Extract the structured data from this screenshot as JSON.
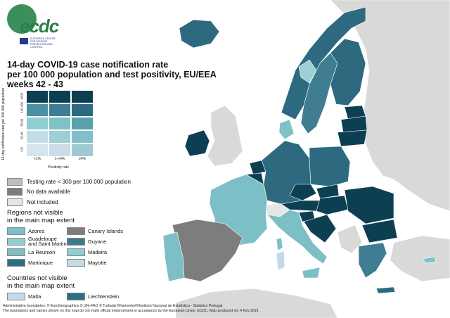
{
  "logo": {
    "text": "ecdc",
    "subtitle": "EUROPEAN CENTRE FOR DISEASE PREVENTION AND CONTROL"
  },
  "title": {
    "line1": "14-day COVID-19 case notification rate",
    "line2": "per 100 000 population and test positivity, EU/EEA",
    "line3": "weeks 42 - 43"
  },
  "matrix": {
    "y_label": "14-day notification rate per 100 000 population",
    "x_label": "Positivity rate",
    "rows": [
      "≥500",
      "100-499",
      "50-99",
      "20-49",
      "<20"
    ],
    "cols": [
      "<1%",
      "1-<4%",
      "≥4%"
    ],
    "colors": [
      [
        "#0d3f52",
        "#0d3f52",
        "#0d3f52"
      ],
      [
        "#4f8fa3",
        "#3f7d92",
        "#2d6a80"
      ],
      [
        "#8ecfd0",
        "#7ec2c6",
        "#5aa0ad"
      ],
      [
        "#c3dbe6",
        "#9cd0d4",
        "#82bfc9"
      ],
      [
        "#d6e4ee",
        "#c9dde9",
        "#9ec9d3"
      ]
    ]
  },
  "legend": {
    "testing_rate": {
      "label": "Testing rate < 300 per 100 000 population",
      "color": "#bdbdbd"
    },
    "no_data": {
      "label": "No data available",
      "color": "#7d7d7d"
    },
    "not_included": {
      "label": "Not included",
      "color": "#e6e6e6"
    }
  },
  "regions_heading": "Regions not visible\nin the main map extent",
  "regions": [
    {
      "name": "Azores",
      "color": "#7cbfc6"
    },
    {
      "name": "Canary Islands",
      "color": "#7d7d7d"
    },
    {
      "name": "Guadeloupe\nand Saint Martin",
      "color": "#8ecfd0"
    },
    {
      "name": "Guyane",
      "color": "#3a7a90"
    },
    {
      "name": "La Reunion",
      "color": "#7cbfc6"
    },
    {
      "name": "Madeira",
      "color": "#8ecfd0"
    },
    {
      "name": "Martinique",
      "color": "#2a6f84"
    },
    {
      "name": "Mayotte",
      "color": "#c3dbe6"
    }
  ],
  "countries_heading": "Countries not visible\nin the main map extent",
  "countries": [
    {
      "name": "Malta",
      "color": "#c3dbe6"
    },
    {
      "name": "Liechtenstein",
      "color": "#2a6f84"
    }
  ],
  "footer": {
    "line1": "Administrative boundaries: © EuroGeographics © UN–FAO © Turkstat ©Kartverket©Instituto Nacional de Estatística - Statistics Portugal.",
    "line2": "The boundaries and names shown on this map do not imply official endorsement or acceptance by the European Union. ECDC. Map produced on: 4 Nov 2021"
  },
  "map_colors": {
    "sea": "#ffffff",
    "non_eu": "#d9d9d9",
    "dark": "#0d3f52",
    "medium": "#2d6a80",
    "teal": "#3f7d92",
    "light": "#7cbfc6",
    "pale": "#c3dbe6",
    "grey": "#7d7d7d"
  }
}
